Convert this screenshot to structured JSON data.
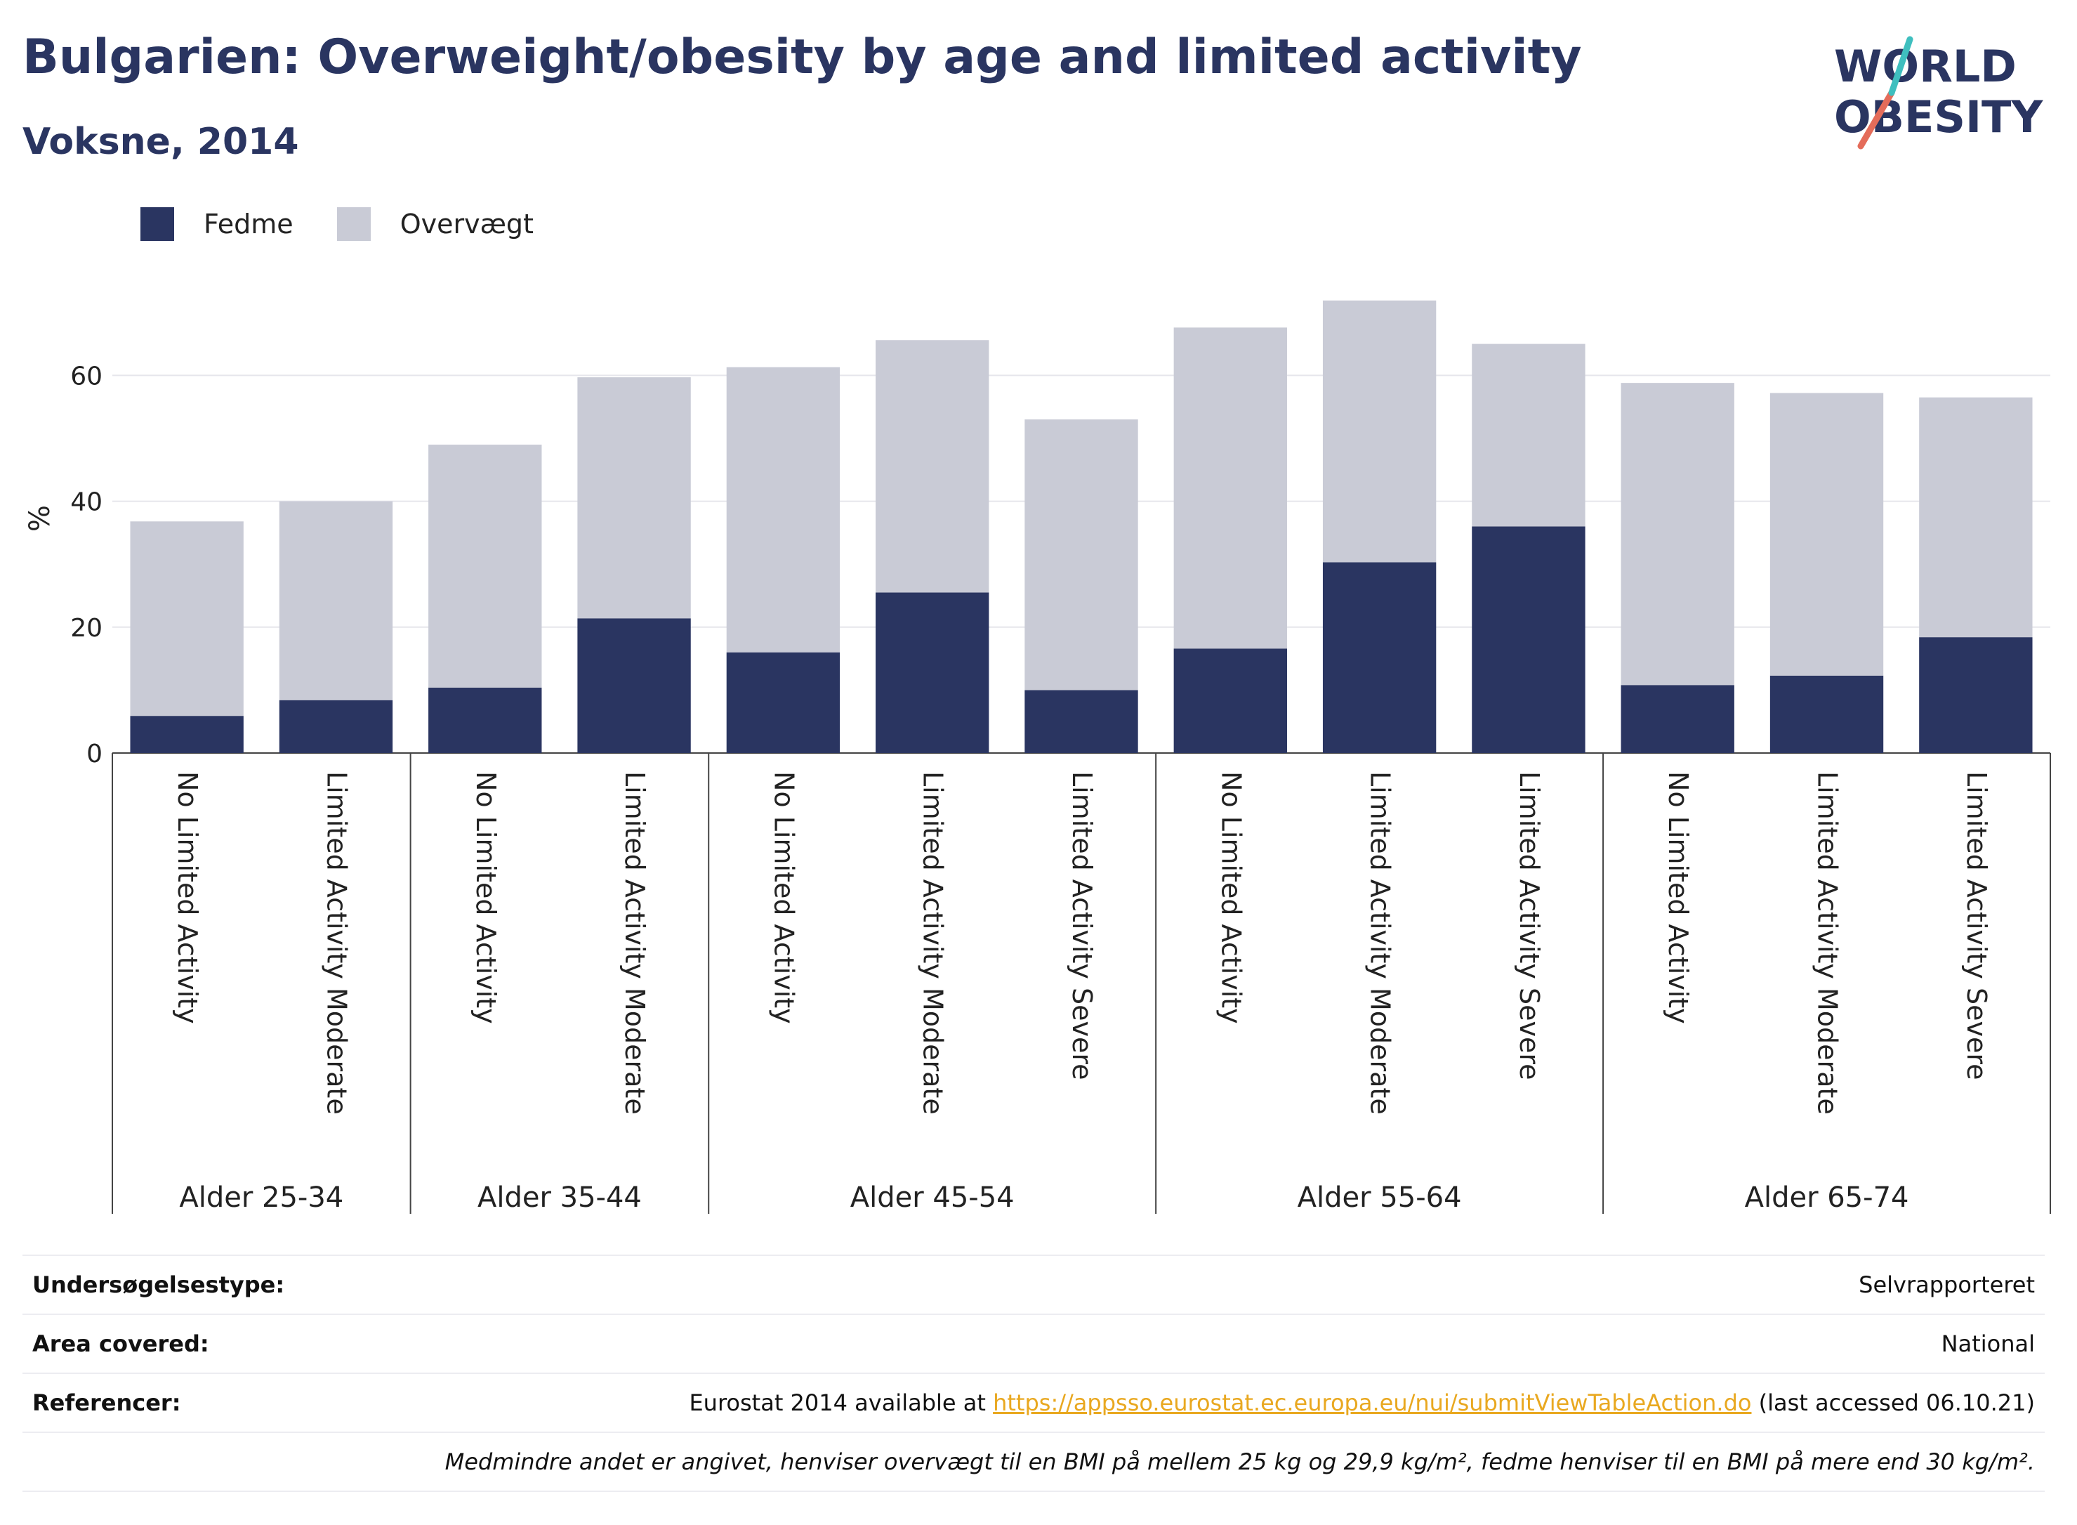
{
  "header": {
    "title": "Bulgarien: Overweight/obesity by age and limited activity",
    "subtitle": "Voksne, 2014"
  },
  "logo": {
    "line1": "WORLD",
    "line2": "OBESITY"
  },
  "colors": {
    "fedme": "#2a3561",
    "overvaegt": "#c9cbd6",
    "title": "#2a3561",
    "link": "#e9a820"
  },
  "chart_data": {
    "type": "bar",
    "stacked": true,
    "ylabel": "%",
    "ylim": [
      0,
      75
    ],
    "yticks": [
      0,
      20,
      40,
      60
    ],
    "grid": true,
    "legend_position": "top-left",
    "groups": [
      {
        "label": "Alder 25-34",
        "categories": [
          "No Limited Activity",
          "Limited Activity Moderate"
        ]
      },
      {
        "label": "Alder 35-44",
        "categories": [
          "No Limited Activity",
          "Limited Activity Moderate"
        ]
      },
      {
        "label": "Alder 45-54",
        "categories": [
          "No Limited Activity",
          "Limited Activity Moderate",
          "Limited Activity Severe"
        ]
      },
      {
        "label": "Alder 55-64",
        "categories": [
          "No Limited Activity",
          "Limited Activity Moderate",
          "Limited Activity Severe"
        ]
      },
      {
        "label": "Alder 65-74",
        "categories": [
          "No Limited Activity",
          "Limited Activity Moderate",
          "Limited Activity Severe"
        ]
      }
    ],
    "series": [
      {
        "name": "Fedme",
        "values": [
          5.9,
          8.4,
          10.4,
          21.4,
          16.0,
          25.5,
          10.0,
          16.6,
          30.3,
          36.0,
          10.8,
          12.3,
          18.4
        ]
      },
      {
        "name": "Overvægt",
        "values": [
          30.9,
          31.6,
          38.6,
          38.3,
          45.3,
          40.1,
          43.0,
          51.0,
          41.6,
          29.0,
          48.0,
          44.9,
          38.1
        ]
      }
    ]
  },
  "info": {
    "survey_type_label": "Undersøgelsestype:",
    "survey_type_value": "Selvrapporteret",
    "area_label": "Area covered:",
    "area_value": "National",
    "references_label": "Referencer:",
    "references_prefix": "Eurostat 2014 available at ",
    "references_link": "https://appsso.eurostat.ec.europa.eu/nui/submitViewTableAction.do",
    "references_suffix": " (last accessed 06.10.21)",
    "note": "Medmindre andet er angivet, henviser overvægt til en BMI på mellem 25 kg og 29,9 kg/m², fedme henviser til en BMI på mere end 30 kg/m²."
  }
}
